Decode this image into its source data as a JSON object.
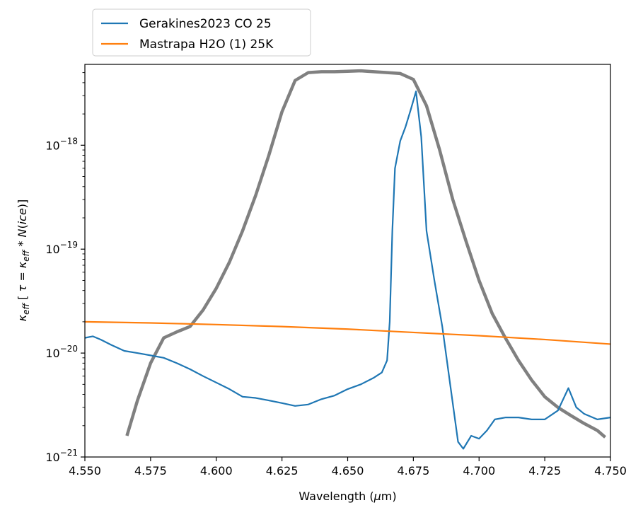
{
  "chart_data": {
    "type": "line",
    "xlabel": "Wavelength (μm)",
    "ylabel": "κeff [ τ = κeff * N(ice)]",
    "xlim": [
      4.55,
      4.75
    ],
    "ylim": [
      1e-21,
      6e-18
    ],
    "yscale": "log",
    "grid": false,
    "legend_position": "above-top-left",
    "x_ticks": [
      "4.550",
      "4.575",
      "4.600",
      "4.625",
      "4.650",
      "4.675",
      "4.700",
      "4.725",
      "4.750"
    ],
    "y_ticks": [
      {
        "value": 1e-21,
        "base": "10",
        "exp": "−21"
      },
      {
        "value": 1e-20,
        "base": "10",
        "exp": "−20"
      },
      {
        "value": 1e-19,
        "base": "10",
        "exp": "−19"
      },
      {
        "value": 1e-18,
        "base": "10",
        "exp": "−18"
      }
    ],
    "series": [
      {
        "name": "Gerakines2023 CO 25",
        "color": "#1f77b4",
        "x": [
          4.55,
          4.553,
          4.556,
          4.56,
          4.565,
          4.57,
          4.575,
          4.58,
          4.585,
          4.59,
          4.595,
          4.6,
          4.605,
          4.61,
          4.615,
          4.62,
          4.625,
          4.63,
          4.635,
          4.64,
          4.645,
          4.65,
          4.655,
          4.66,
          4.663,
          4.665,
          4.666,
          4.667,
          4.668,
          4.67,
          4.672,
          4.674,
          4.676,
          4.678,
          4.68,
          4.683,
          4.686,
          4.689,
          4.692,
          4.694,
          4.697,
          4.7,
          4.703,
          4.706,
          4.71,
          4.715,
          4.72,
          4.725,
          4.73,
          4.734,
          4.737,
          4.74,
          4.745,
          4.75
        ],
        "y": [
          1.4e-20,
          1.45e-20,
          1.35e-20,
          1.2e-20,
          1.05e-20,
          1e-20,
          9.5e-21,
          9e-21,
          8e-21,
          7e-21,
          6e-21,
          5.2e-21,
          4.5e-21,
          3.8e-21,
          3.7e-21,
          3.5e-21,
          3.3e-21,
          3.1e-21,
          3.2e-21,
          3.6e-21,
          3.9e-21,
          4.5e-21,
          5e-21,
          5.8e-21,
          6.5e-21,
          8.5e-21,
          2e-20,
          1.5e-19,
          6e-19,
          1.1e-18,
          1.5e-18,
          2.2e-18,
          3.3e-18,
          1.2e-18,
          1.5e-19,
          5e-20,
          1.8e-20,
          5e-21,
          1.4e-21,
          1.2e-21,
          1.6e-21,
          1.5e-21,
          1.8e-21,
          2.3e-21,
          2.4e-21,
          2.4e-21,
          2.3e-21,
          2.3e-21,
          2.8e-21,
          4.6e-21,
          3e-21,
          2.6e-21,
          2.3e-21,
          2.4e-21
        ]
      },
      {
        "name": "Mastrapa H2O (1) 25K",
        "color": "#ff7f0e",
        "x": [
          4.55,
          4.575,
          4.6,
          4.625,
          4.65,
          4.675,
          4.7,
          4.725,
          4.75
        ],
        "y": [
          2e-20,
          1.95e-20,
          1.88e-20,
          1.8e-20,
          1.7e-20,
          1.58e-20,
          1.47e-20,
          1.35e-20,
          1.22e-20
        ]
      }
    ],
    "unlabeled_curve": {
      "color": "#808080",
      "x": [
        4.566,
        4.57,
        4.575,
        4.58,
        4.585,
        4.59,
        4.595,
        4.6,
        4.605,
        4.61,
        4.615,
        4.62,
        4.625,
        4.63,
        4.635,
        4.64,
        4.645,
        4.65,
        4.655,
        4.66,
        4.665,
        4.67,
        4.675,
        4.68,
        4.685,
        4.69,
        4.695,
        4.7,
        4.705,
        4.71,
        4.715,
        4.72,
        4.725,
        4.73,
        4.735,
        4.74,
        4.745,
        4.748
      ],
      "y": [
        1.6e-21,
        3.5e-21,
        8e-21,
        1.4e-20,
        1.6e-20,
        1.8e-20,
        2.6e-20,
        4.2e-20,
        7.5e-20,
        1.5e-19,
        3.3e-19,
        8e-19,
        2.1e-18,
        4.2e-18,
        5e-18,
        5.1e-18,
        5.1e-18,
        5.15e-18,
        5.2e-18,
        5.1e-18,
        5e-18,
        4.9e-18,
        4.3e-18,
        2.4e-18,
        9e-19,
        3e-19,
        1.2e-19,
        5e-20,
        2.4e-20,
        1.4e-20,
        8.5e-21,
        5.5e-21,
        3.8e-21,
        3e-21,
        2.5e-21,
        2.1e-21,
        1.8e-21,
        1.55e-21
      ]
    }
  }
}
